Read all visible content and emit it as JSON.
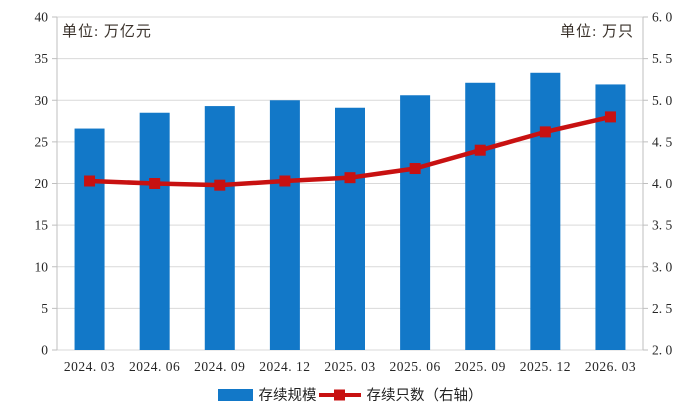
{
  "chart_data": {
    "type": "bar",
    "subtype": "bar+line dual axis",
    "categories": [
      "2024. 03",
      "2024. 06",
      "2024. 09",
      "2024. 12",
      "2025. 03",
      "2025. 06",
      "2025. 09",
      "2025. 12",
      "2026. 03"
    ],
    "series": [
      {
        "name": "存续规模",
        "type": "bar",
        "axis": "left",
        "color": "#1278c8",
        "values": [
          26.6,
          28.5,
          29.3,
          30.0,
          29.1,
          30.6,
          32.1,
          33.3,
          31.9
        ]
      },
      {
        "name": "存续只数（右轴）",
        "type": "line",
        "axis": "right",
        "color": "#c81111",
        "marker": "square",
        "values": [
          4.03,
          4.0,
          3.98,
          4.03,
          4.07,
          4.18,
          4.4,
          4.62,
          4.8
        ]
      }
    ],
    "left_axis": {
      "unit_label": "单位: 万亿元",
      "min": 0,
      "max": 40,
      "step": 5,
      "ticks": [
        "0",
        "5",
        "10",
        "15",
        "20",
        "25",
        "30",
        "35",
        "40"
      ]
    },
    "right_axis": {
      "unit_label": "单位: 万只",
      "min": 2.0,
      "max": 6.0,
      "step": 0.5,
      "ticks": [
        "2. 0",
        "2. 5",
        "3. 0",
        "3. 5",
        "4. 0",
        "4. 5",
        "5. 0",
        "5. 5",
        "6. 0"
      ]
    },
    "title": "",
    "xlabel": "",
    "ylabel": "",
    "grid": true,
    "grid_color": "#d9d9d9",
    "axis_line_color": "#bfbfbf",
    "legend_position": "bottom"
  }
}
